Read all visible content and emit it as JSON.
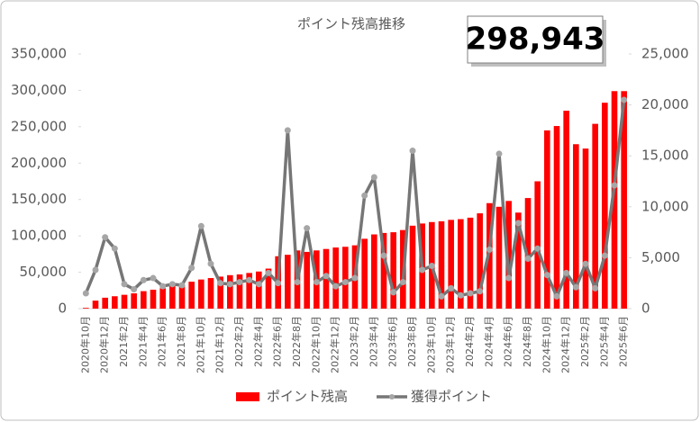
{
  "chart_data": {
    "type": "bar_line",
    "title": "ポイント残高推移",
    "annotation": "298,943",
    "categories": [
      "2020年10月",
      null,
      "2020年12月",
      null,
      "2021年2月",
      null,
      "2021年4月",
      null,
      "2021年6月",
      null,
      "2021年8月",
      null,
      "2021年10月",
      null,
      "2021年12月",
      null,
      "2022年2月",
      null,
      "2022年4月",
      null,
      "2022年6月",
      null,
      "2022年8月",
      null,
      "2022年10月",
      null,
      "2022年12月",
      null,
      "2023年2月",
      null,
      "2023年4月",
      null,
      "2023年6月",
      null,
      "2023年8月",
      null,
      "2023年10月",
      null,
      "2023年12月",
      null,
      "2024年2月",
      null,
      "2024年4月",
      null,
      "2024年6月",
      null,
      "2024年8月",
      null,
      "2024年10月",
      null,
      "2024年12月",
      null,
      "2025年2月",
      null,
      "2025年4月",
      null,
      "2025年6月"
    ],
    "series": [
      {
        "name": "ポイント残高",
        "color": "#ff0000",
        "axis": "y",
        "values": [
          1000,
          11000,
          15000,
          17000,
          19000,
          21000,
          24000,
          26000,
          28000,
          31000,
          33000,
          37000,
          40000,
          42000,
          44000,
          46000,
          47000,
          49000,
          51000,
          55000,
          72000,
          74000,
          80000,
          78000,
          80000,
          82000,
          84000,
          85000,
          87000,
          96000,
          102000,
          104000,
          105000,
          108000,
          114000,
          117000,
          119000,
          120000,
          122000,
          123000,
          125000,
          131000,
          145000,
          140000,
          148000,
          132000,
          152000,
          175000,
          245000,
          251000,
          272000,
          226000,
          220000,
          254000,
          283000,
          298943,
          298943
        ]
      },
      {
        "name": "獲得ポイント",
        "color": "#767676",
        "axis": "y2",
        "values": [
          1500,
          3800,
          7000,
          5900,
          2400,
          1900,
          2800,
          3000,
          2200,
          2400,
          2300,
          4000,
          8100,
          4400,
          2500,
          2400,
          2600,
          2800,
          2400,
          3500,
          2500,
          17500,
          2600,
          7900,
          2600,
          3200,
          2200,
          2600,
          3000,
          11100,
          12900,
          5200,
          1600,
          2600,
          15500,
          3800,
          4200,
          1200,
          2000,
          1300,
          1500,
          1700,
          5800,
          15200,
          3000,
          8400,
          4900,
          5900,
          3300,
          1200,
          3500,
          2100,
          4400,
          2000,
          5200,
          12100,
          20500
        ]
      }
    ],
    "ylim": [
      0,
      350000
    ],
    "yticks": [
      0,
      {
        "value": 50000,
        "label": "50,000"
      },
      {
        "value": 100000,
        "label": "100,000"
      },
      {
        "value": 150000,
        "label": "150,000"
      },
      {
        "value": 200000,
        "label": "200,000"
      },
      {
        "value": 250000,
        "label": "250,000"
      },
      {
        "value": 300000,
        "label": "300,000"
      },
      {
        "value": 350000,
        "label": "350,000"
      }
    ],
    "y2lim": [
      0,
      25000
    ],
    "y2ticks": [
      0,
      {
        "value": 5000,
        "label": "5,000"
      },
      {
        "value": 10000,
        "label": "10,000"
      },
      {
        "value": 15000,
        "label": "15,000"
      },
      {
        "value": 20000,
        "label": "20,000"
      },
      {
        "value": 25000,
        "label": "25,000"
      }
    ],
    "grid": false,
    "legend": "bottom"
  }
}
